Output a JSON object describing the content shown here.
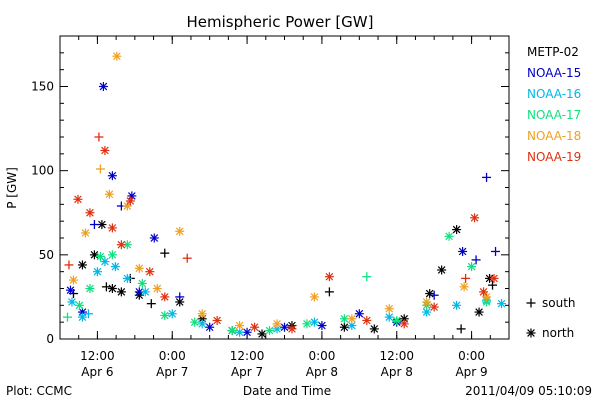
{
  "chart_data": {
    "type": "scatter",
    "title": "Hemispheric Power [GW]",
    "xlabel": "Date and Time",
    "ylabel": "P [GW]",
    "ylim": [
      0,
      180
    ],
    "xlim": [
      0.25,
      3.25
    ],
    "x_unit": "days since Apr 6 00:00",
    "yticks": [
      0,
      50,
      100,
      150
    ],
    "xticks": [
      {
        "x": 0.5,
        "line1": "12:00",
        "line2": "Apr 6"
      },
      {
        "x": 1.0,
        "line1": "0:00",
        "line2": "Apr 7"
      },
      {
        "x": 1.5,
        "line1": "12:00",
        "line2": "Apr 7"
      },
      {
        "x": 2.0,
        "line1": "0:00",
        "line2": "Apr 8"
      },
      {
        "x": 2.5,
        "line1": "12:00",
        "line2": "Apr 8"
      },
      {
        "x": 3.0,
        "line1": "0:00",
        "line2": "Apr 9"
      }
    ],
    "grid": false,
    "legend_position": "right",
    "marker_legend": [
      {
        "symbol": "+",
        "label": "south"
      },
      {
        "symbol": "*",
        "label": "north"
      }
    ],
    "series": [
      {
        "name": "METP-02",
        "color": "#000000",
        "points": [
          {
            "x": 0.34,
            "y": 27,
            "m": "+"
          },
          {
            "x": 0.4,
            "y": 44,
            "m": "*"
          },
          {
            "x": 0.48,
            "y": 50,
            "m": "*"
          },
          {
            "x": 0.53,
            "y": 68,
            "m": "*"
          },
          {
            "x": 0.56,
            "y": 31,
            "m": "+"
          },
          {
            "x": 0.6,
            "y": 30,
            "m": "*"
          },
          {
            "x": 0.66,
            "y": 28,
            "m": "*"
          },
          {
            "x": 0.72,
            "y": 36,
            "m": "+"
          },
          {
            "x": 0.78,
            "y": 26,
            "m": "*"
          },
          {
            "x": 0.86,
            "y": 21,
            "m": "+"
          },
          {
            "x": 0.95,
            "y": 51,
            "m": "+"
          },
          {
            "x": 1.05,
            "y": 22,
            "m": "*"
          },
          {
            "x": 1.2,
            "y": 12,
            "m": "*"
          },
          {
            "x": 1.4,
            "y": 5,
            "m": "*"
          },
          {
            "x": 1.6,
            "y": 3,
            "m": "*"
          },
          {
            "x": 1.8,
            "y": 8,
            "m": "*"
          },
          {
            "x": 2.05,
            "y": 28,
            "m": "+"
          },
          {
            "x": 2.15,
            "y": 7,
            "m": "*"
          },
          {
            "x": 2.35,
            "y": 6,
            "m": "*"
          },
          {
            "x": 2.55,
            "y": 12,
            "m": "*"
          },
          {
            "x": 2.72,
            "y": 27,
            "m": "*"
          },
          {
            "x": 2.8,
            "y": 41,
            "m": "*"
          },
          {
            "x": 2.9,
            "y": 65,
            "m": "*"
          },
          {
            "x": 2.93,
            "y": 6,
            "m": "+"
          },
          {
            "x": 3.05,
            "y": 16,
            "m": "*"
          },
          {
            "x": 3.12,
            "y": 36,
            "m": "*"
          },
          {
            "x": 3.14,
            "y": 32,
            "m": "+"
          }
        ]
      },
      {
        "name": "NOAA-15",
        "color": "#0000c8",
        "points": [
          {
            "x": 0.32,
            "y": 29,
            "m": "*"
          },
          {
            "x": 0.4,
            "y": 16,
            "m": "*"
          },
          {
            "x": 0.48,
            "y": 68,
            "m": "+"
          },
          {
            "x": 0.54,
            "y": 150,
            "m": "*"
          },
          {
            "x": 0.6,
            "y": 97,
            "m": "*"
          },
          {
            "x": 0.66,
            "y": 79,
            "m": "+"
          },
          {
            "x": 0.73,
            "y": 85,
            "m": "*"
          },
          {
            "x": 0.78,
            "y": 28,
            "m": "*"
          },
          {
            "x": 0.88,
            "y": 60,
            "m": "*"
          },
          {
            "x": 1.05,
            "y": 25,
            "m": "+"
          },
          {
            "x": 1.25,
            "y": 7,
            "m": "*"
          },
          {
            "x": 1.5,
            "y": 4,
            "m": "*"
          },
          {
            "x": 1.75,
            "y": 7,
            "m": "*"
          },
          {
            "x": 2.0,
            "y": 8,
            "m": "*"
          },
          {
            "x": 2.25,
            "y": 15,
            "m": "*"
          },
          {
            "x": 2.5,
            "y": 10,
            "m": "*"
          },
          {
            "x": 2.75,
            "y": 26,
            "m": "+"
          },
          {
            "x": 2.94,
            "y": 52,
            "m": "*"
          },
          {
            "x": 3.03,
            "y": 47,
            "m": "+"
          },
          {
            "x": 3.1,
            "y": 96,
            "m": "+"
          },
          {
            "x": 3.16,
            "y": 52,
            "m": "+"
          }
        ]
      },
      {
        "name": "NOAA-16",
        "color": "#00b8e8",
        "points": [
          {
            "x": 0.33,
            "y": 22,
            "m": "*"
          },
          {
            "x": 0.4,
            "y": 13,
            "m": "*"
          },
          {
            "x": 0.44,
            "y": 15,
            "m": "+"
          },
          {
            "x": 0.5,
            "y": 40,
            "m": "*"
          },
          {
            "x": 0.55,
            "y": 46,
            "m": "*"
          },
          {
            "x": 0.62,
            "y": 43,
            "m": "*"
          },
          {
            "x": 0.7,
            "y": 36,
            "m": "*"
          },
          {
            "x": 0.82,
            "y": 28,
            "m": "*"
          },
          {
            "x": 1.0,
            "y": 15,
            "m": "*"
          },
          {
            "x": 1.2,
            "y": 9,
            "m": "*"
          },
          {
            "x": 1.45,
            "y": 4,
            "m": "*"
          },
          {
            "x": 1.7,
            "y": 6,
            "m": "*"
          },
          {
            "x": 1.95,
            "y": 10,
            "m": "*"
          },
          {
            "x": 2.2,
            "y": 8,
            "m": "*"
          },
          {
            "x": 2.45,
            "y": 13,
            "m": "*"
          },
          {
            "x": 2.7,
            "y": 16,
            "m": "*"
          },
          {
            "x": 2.9,
            "y": 20,
            "m": "*"
          },
          {
            "x": 3.1,
            "y": 23,
            "m": "*"
          },
          {
            "x": 3.2,
            "y": 21,
            "m": "*"
          }
        ]
      },
      {
        "name": "NOAA-17",
        "color": "#10e080",
        "points": [
          {
            "x": 0.3,
            "y": 13,
            "m": "+"
          },
          {
            "x": 0.38,
            "y": 20,
            "m": "*"
          },
          {
            "x": 0.45,
            "y": 30,
            "m": "*"
          },
          {
            "x": 0.52,
            "y": 49,
            "m": "*"
          },
          {
            "x": 0.6,
            "y": 50,
            "m": "*"
          },
          {
            "x": 0.7,
            "y": 56,
            "m": "*"
          },
          {
            "x": 0.8,
            "y": 33,
            "m": "*"
          },
          {
            "x": 0.95,
            "y": 14,
            "m": "*"
          },
          {
            "x": 1.15,
            "y": 10,
            "m": "*"
          },
          {
            "x": 1.4,
            "y": 5,
            "m": "*"
          },
          {
            "x": 1.65,
            "y": 5,
            "m": "*"
          },
          {
            "x": 1.9,
            "y": 9,
            "m": "*"
          },
          {
            "x": 2.15,
            "y": 12,
            "m": "*"
          },
          {
            "x": 2.3,
            "y": 37,
            "m": "+"
          },
          {
            "x": 2.5,
            "y": 11,
            "m": "*"
          },
          {
            "x": 2.7,
            "y": 20,
            "m": "*"
          },
          {
            "x": 2.85,
            "y": 61,
            "m": "*"
          },
          {
            "x": 3.0,
            "y": 43,
            "m": "*"
          },
          {
            "x": 3.1,
            "y": 22,
            "m": "*"
          }
        ]
      },
      {
        "name": "NOAA-18",
        "color": "#f0a020",
        "points": [
          {
            "x": 0.34,
            "y": 35,
            "m": "*"
          },
          {
            "x": 0.42,
            "y": 63,
            "m": "*"
          },
          {
            "x": 0.52,
            "y": 101,
            "m": "+"
          },
          {
            "x": 0.58,
            "y": 86,
            "m": "*"
          },
          {
            "x": 0.63,
            "y": 168,
            "m": "*"
          },
          {
            "x": 0.7,
            "y": 79,
            "m": "*"
          },
          {
            "x": 0.78,
            "y": 42,
            "m": "*"
          },
          {
            "x": 0.9,
            "y": 30,
            "m": "*"
          },
          {
            "x": 1.05,
            "y": 64,
            "m": "*"
          },
          {
            "x": 1.2,
            "y": 15,
            "m": "*"
          },
          {
            "x": 1.45,
            "y": 8,
            "m": "*"
          },
          {
            "x": 1.7,
            "y": 9,
            "m": "*"
          },
          {
            "x": 1.95,
            "y": 25,
            "m": "*"
          },
          {
            "x": 2.2,
            "y": 12,
            "m": "*"
          },
          {
            "x": 2.45,
            "y": 18,
            "m": "*"
          },
          {
            "x": 2.7,
            "y": 22,
            "m": "*"
          },
          {
            "x": 2.95,
            "y": 31,
            "m": "*"
          },
          {
            "x": 3.1,
            "y": 25,
            "m": "*"
          }
        ]
      },
      {
        "name": "NOAA-19",
        "color": "#e03010",
        "points": [
          {
            "x": 0.31,
            "y": 44,
            "m": "+"
          },
          {
            "x": 0.37,
            "y": 83,
            "m": "*"
          },
          {
            "x": 0.45,
            "y": 75,
            "m": "*"
          },
          {
            "x": 0.51,
            "y": 120,
            "m": "+"
          },
          {
            "x": 0.55,
            "y": 112,
            "m": "*"
          },
          {
            "x": 0.6,
            "y": 66,
            "m": "*"
          },
          {
            "x": 0.66,
            "y": 56,
            "m": "*"
          },
          {
            "x": 0.72,
            "y": 82,
            "m": "*"
          },
          {
            "x": 0.85,
            "y": 40,
            "m": "*"
          },
          {
            "x": 0.95,
            "y": 25,
            "m": "*"
          },
          {
            "x": 1.1,
            "y": 48,
            "m": "+"
          },
          {
            "x": 1.3,
            "y": 11,
            "m": "*"
          },
          {
            "x": 1.55,
            "y": 7,
            "m": "*"
          },
          {
            "x": 1.8,
            "y": 6,
            "m": "*"
          },
          {
            "x": 2.05,
            "y": 37,
            "m": "*"
          },
          {
            "x": 2.3,
            "y": 11,
            "m": "*"
          },
          {
            "x": 2.55,
            "y": 9,
            "m": "*"
          },
          {
            "x": 2.75,
            "y": 19,
            "m": "*"
          },
          {
            "x": 2.96,
            "y": 36,
            "m": "+"
          },
          {
            "x": 3.02,
            "y": 72,
            "m": "*"
          },
          {
            "x": 3.08,
            "y": 28,
            "m": "*"
          },
          {
            "x": 3.15,
            "y": 36,
            "m": "*"
          }
        ]
      }
    ]
  },
  "footer": {
    "left": "Plot: CCMC",
    "right": "2011/04/09 05:10:09"
  }
}
